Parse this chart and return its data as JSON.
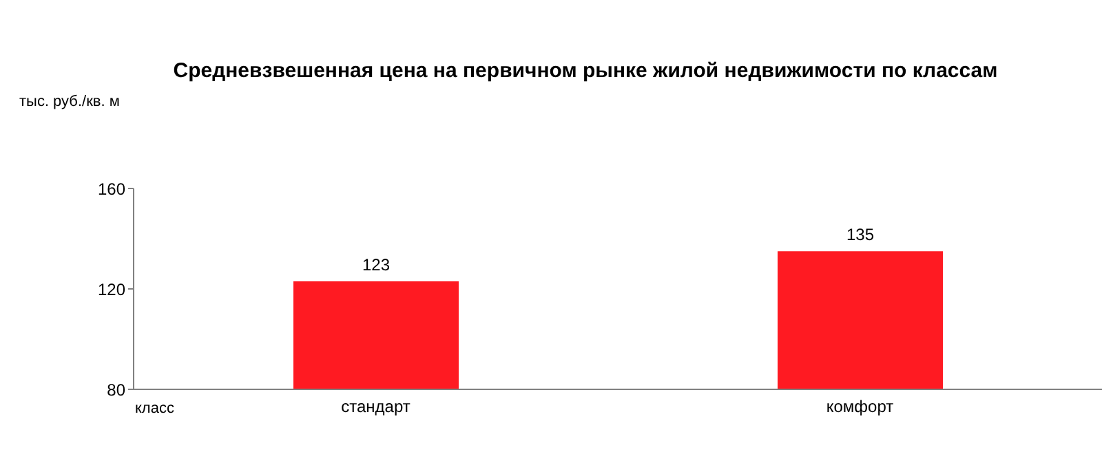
{
  "chart_data": {
    "type": "bar",
    "title": "Средневзвешенная цена на первичном рынке жилой недвижимости по классам",
    "ylabel": "тыс. руб./кв. м",
    "xlabel": "класс",
    "categories": [
      "стандарт",
      "комфорт"
    ],
    "values": [
      123,
      135
    ],
    "color": "#ff1a22",
    "ylim": [
      80,
      160
    ],
    "yticks": [
      80,
      120,
      160
    ],
    "grid": false,
    "data_labels": true
  }
}
